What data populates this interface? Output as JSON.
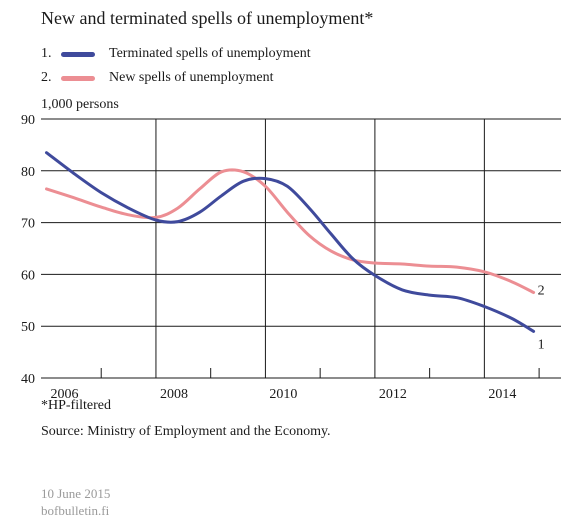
{
  "title": "New and terminated spells of unemployment*",
  "legend": [
    {
      "number": "1.",
      "label": "Terminated spells of unemployment",
      "color": "#3f4a9c"
    },
    {
      "number": "2.",
      "label": "New spells of unemployment",
      "color": "#ec8e93"
    }
  ],
  "unit_label": "1,000 persons",
  "footnote": "*HP-filtered",
  "source": "Source: Ministry of Employment and the Economy.",
  "date": "10 June 2015",
  "site": "bofbulletin.fi",
  "chart_data": {
    "type": "line",
    "ylabel": "1,000 persons",
    "ylim": [
      40,
      90
    ],
    "yticks": [
      40,
      50,
      60,
      70,
      80,
      90
    ],
    "xlim": [
      2005.9,
      2015.4
    ],
    "xticks": [
      2006,
      2008,
      2010,
      2012,
      2014
    ],
    "grid": true,
    "series": [
      {
        "name": "Terminated spells of unemployment",
        "end_label": "1",
        "color": "#3f4a9c",
        "x": [
          2006.0,
          2006.5,
          2007.0,
          2007.5,
          2008.0,
          2008.4,
          2008.8,
          2009.2,
          2009.6,
          2010.0,
          2010.4,
          2010.8,
          2011.2,
          2011.6,
          2012.0,
          2012.5,
          2013.0,
          2013.5,
          2014.0,
          2014.5,
          2014.9
        ],
        "y": [
          83.5,
          79.5,
          75.8,
          72.8,
          70.5,
          70.2,
          72.0,
          75.2,
          78.0,
          78.5,
          77.0,
          72.8,
          67.8,
          63.0,
          59.8,
          57.0,
          56.0,
          55.5,
          53.8,
          51.5,
          49.0
        ]
      },
      {
        "name": "New spells of unemployment",
        "end_label": "2",
        "color": "#ec8e93",
        "x": [
          2006.0,
          2006.5,
          2007.0,
          2007.5,
          2008.0,
          2008.4,
          2008.8,
          2009.2,
          2009.6,
          2010.0,
          2010.4,
          2010.8,
          2011.2,
          2011.6,
          2012.0,
          2012.5,
          2013.0,
          2013.5,
          2014.0,
          2014.5,
          2014.9
        ],
        "y": [
          76.5,
          74.8,
          73.0,
          71.5,
          71.0,
          72.8,
          76.5,
          79.8,
          79.8,
          77.0,
          72.0,
          67.5,
          64.5,
          62.8,
          62.2,
          62.0,
          61.6,
          61.4,
          60.5,
          58.6,
          56.5
        ]
      }
    ]
  }
}
